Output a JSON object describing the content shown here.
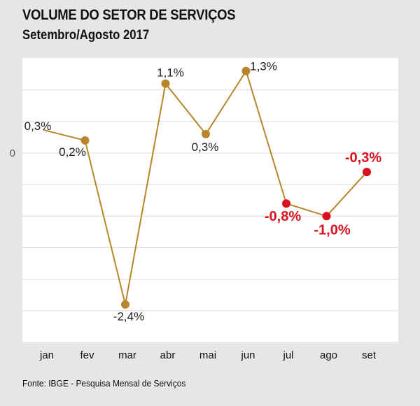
{
  "header": {
    "title": "VOLUME DO SETOR DE SERVIÇOS",
    "subtitle": "Setembro/Agosto 2017"
  },
  "footer": {
    "source": "Fonte: IBGE - Pesquisa Mensal de Serviços"
  },
  "chart_data": {
    "type": "line",
    "categories": [
      "jan",
      "fev",
      "mar",
      "abr",
      "mai",
      "jun",
      "jul",
      "ago",
      "set"
    ],
    "values": [
      0.3,
      0.2,
      -2.4,
      1.1,
      0.3,
      1.3,
      -0.8,
      -1.0,
      -0.3
    ],
    "labels": [
      "0,3%",
      "0,2%",
      "-2,4%",
      "1,1%",
      "0,3%",
      "1,3%",
      "-0,8%",
      "-1,0%",
      "-0,3%"
    ],
    "zero_label": "0",
    "ylim": [
      -3.0,
      1.5
    ],
    "grid": true,
    "colors": {
      "line": "#b8862a",
      "positive_marker": "#b8862a",
      "negative_highlight": "#d7141e",
      "label_default": "#222222"
    }
  }
}
